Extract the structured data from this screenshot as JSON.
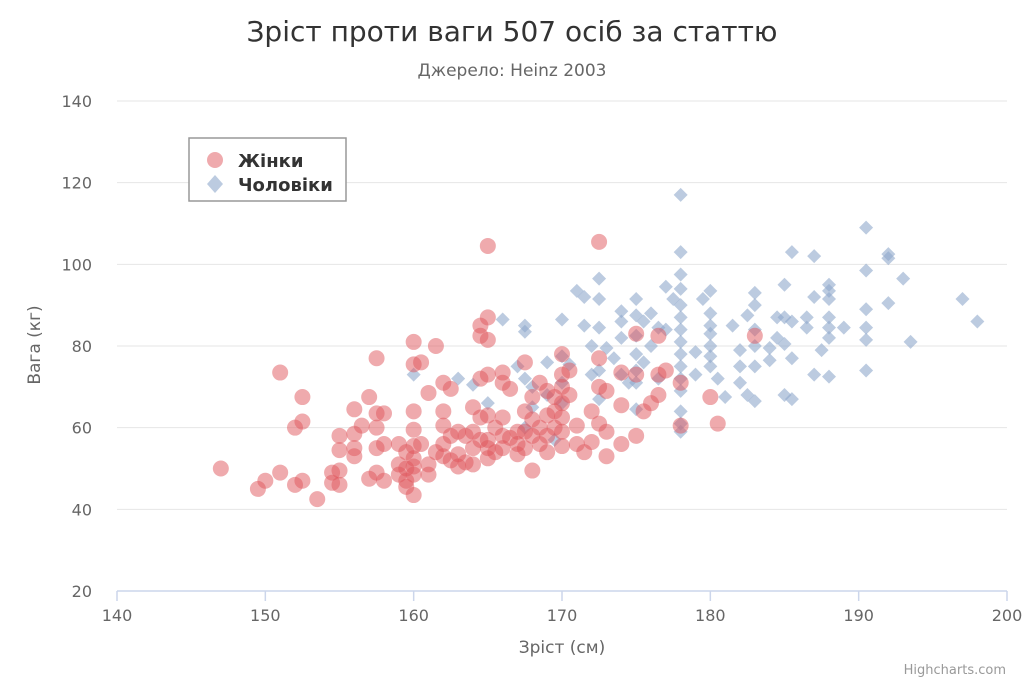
{
  "chart_data": {
    "type": "scatter",
    "title": "Зріст проти ваги 507 осіб за статтю",
    "subtitle": "Джерело: Heinz 2003",
    "xlabel": "Зріст (см)",
    "ylabel": "Вага (кг)",
    "xlim": [
      140,
      200
    ],
    "ylim": [
      20,
      140
    ],
    "xticks": [
      140,
      150,
      160,
      170,
      180,
      190,
      200
    ],
    "yticks": [
      20,
      40,
      60,
      80,
      100,
      120,
      140
    ],
    "grid": "horizontal",
    "legend_position": "top-left",
    "credits": "Highcharts.com",
    "series": [
      {
        "name": "Жінки",
        "marker": "circle",
        "color": "#e0565b",
        "points": [
          [
            147,
            50
          ],
          [
            149.5,
            45
          ],
          [
            150,
            47
          ],
          [
            151,
            49
          ],
          [
            151,
            73.5
          ],
          [
            152,
            46
          ],
          [
            152,
            60
          ],
          [
            152.5,
            47
          ],
          [
            152.5,
            61.5
          ],
          [
            152.5,
            67.5
          ],
          [
            153.5,
            42.5
          ],
          [
            154.5,
            49
          ],
          [
            154.5,
            46.5
          ],
          [
            155,
            58
          ],
          [
            155,
            54.5
          ],
          [
            155,
            49.5
          ],
          [
            155,
            46
          ],
          [
            156,
            64.5
          ],
          [
            156,
            55
          ],
          [
            156,
            53
          ],
          [
            156,
            58.5
          ],
          [
            156.5,
            60.5
          ],
          [
            157,
            67.5
          ],
          [
            157,
            47.5
          ],
          [
            157.5,
            77
          ],
          [
            157.5,
            63.5
          ],
          [
            157.5,
            60
          ],
          [
            157.5,
            55
          ],
          [
            157.5,
            49
          ],
          [
            158,
            56
          ],
          [
            158,
            63.5
          ],
          [
            158,
            47
          ],
          [
            159,
            56
          ],
          [
            159,
            51
          ],
          [
            159,
            48.5
          ],
          [
            159.5,
            54
          ],
          [
            159.5,
            50
          ],
          [
            159.5,
            47
          ],
          [
            159.5,
            45.5
          ],
          [
            160,
            59.5
          ],
          [
            160,
            64
          ],
          [
            160,
            81
          ],
          [
            160,
            75.5
          ],
          [
            160,
            55.5
          ],
          [
            160,
            52.5
          ],
          [
            160,
            50.5
          ],
          [
            160,
            48.5
          ],
          [
            160,
            43.5
          ],
          [
            160.5,
            76
          ],
          [
            160.5,
            56
          ],
          [
            161,
            68.5
          ],
          [
            161,
            51
          ],
          [
            161,
            48.5
          ],
          [
            161.5,
            80
          ],
          [
            161.5,
            54
          ],
          [
            162,
            71
          ],
          [
            162,
            64
          ],
          [
            162,
            60.5
          ],
          [
            162,
            56
          ],
          [
            162,
            53
          ],
          [
            162.5,
            69.5
          ],
          [
            162.5,
            58
          ],
          [
            162.5,
            52
          ],
          [
            163,
            59
          ],
          [
            163,
            53.5
          ],
          [
            163,
            50.5
          ],
          [
            163.5,
            51.5
          ],
          [
            163.5,
            58
          ],
          [
            164,
            55
          ],
          [
            164,
            59
          ],
          [
            164,
            51
          ],
          [
            164,
            65
          ],
          [
            164.5,
            85
          ],
          [
            164.5,
            82.5
          ],
          [
            164.5,
            72
          ],
          [
            164.5,
            62.5
          ],
          [
            164.5,
            57
          ],
          [
            165,
            104.5
          ],
          [
            165,
            63
          ],
          [
            165,
            57
          ],
          [
            165,
            55
          ],
          [
            165,
            52.5
          ],
          [
            165,
            87
          ],
          [
            165,
            81.5
          ],
          [
            165,
            73
          ],
          [
            165.5,
            60
          ],
          [
            165.5,
            54
          ],
          [
            166,
            73.5
          ],
          [
            166,
            71
          ],
          [
            166,
            62.5
          ],
          [
            166,
            58
          ],
          [
            166,
            55
          ],
          [
            166.5,
            69.5
          ],
          [
            166.5,
            57.5
          ],
          [
            167,
            59
          ],
          [
            167,
            56
          ],
          [
            167,
            53.5
          ],
          [
            167.5,
            76
          ],
          [
            167.5,
            64
          ],
          [
            167.5,
            59
          ],
          [
            167.5,
            55
          ],
          [
            168,
            67.5
          ],
          [
            168,
            62
          ],
          [
            168,
            58
          ],
          [
            168,
            49.5
          ],
          [
            168.5,
            71
          ],
          [
            168.5,
            60
          ],
          [
            168.5,
            56
          ],
          [
            169,
            69
          ],
          [
            169,
            63
          ],
          [
            169,
            58
          ],
          [
            169,
            54
          ],
          [
            169.5,
            67.5
          ],
          [
            169.5,
            64
          ],
          [
            169.5,
            60
          ],
          [
            170,
            78
          ],
          [
            170,
            73
          ],
          [
            170,
            70
          ],
          [
            170,
            66
          ],
          [
            170,
            62.5
          ],
          [
            170,
            59
          ],
          [
            170,
            55.5
          ],
          [
            170.5,
            74
          ],
          [
            170.5,
            68
          ],
          [
            171,
            60.5
          ],
          [
            171,
            56
          ],
          [
            171.5,
            54
          ],
          [
            172,
            56.5
          ],
          [
            172,
            64
          ],
          [
            172.5,
            105.5
          ],
          [
            172.5,
            77
          ],
          [
            172.5,
            70
          ],
          [
            172.5,
            61
          ],
          [
            173,
            69
          ],
          [
            173,
            59
          ],
          [
            173,
            53
          ],
          [
            174,
            65.5
          ],
          [
            174,
            56
          ],
          [
            174,
            73.5
          ],
          [
            175,
            83
          ],
          [
            175,
            73
          ],
          [
            175,
            58
          ],
          [
            175.5,
            64
          ],
          [
            176,
            66
          ],
          [
            176.5,
            82.5
          ],
          [
            176.5,
            68
          ],
          [
            176.5,
            73
          ],
          [
            177,
            74
          ],
          [
            178,
            60.5
          ],
          [
            178,
            71
          ],
          [
            180,
            67.5
          ],
          [
            180.5,
            61
          ],
          [
            183,
            82.5
          ]
        ]
      },
      {
        "name": "Чоловіки",
        "marker": "diamond",
        "color": "#8fa8cc",
        "points": [
          [
            160,
            73
          ],
          [
            163,
            72
          ],
          [
            164,
            70.5
          ],
          [
            165,
            66
          ],
          [
            166,
            86.5
          ],
          [
            167,
            75
          ],
          [
            167.5,
            85
          ],
          [
            167.5,
            83.5
          ],
          [
            167.5,
            72
          ],
          [
            167.5,
            60
          ],
          [
            168,
            65
          ],
          [
            168,
            70
          ],
          [
            169,
            76
          ],
          [
            169,
            68
          ],
          [
            169.5,
            57
          ],
          [
            170,
            86.5
          ],
          [
            170,
            77.5
          ],
          [
            170,
            71
          ],
          [
            170,
            66
          ],
          [
            170.5,
            75.5
          ],
          [
            171,
            93.5
          ],
          [
            171.5,
            92
          ],
          [
            171.5,
            85
          ],
          [
            172,
            80
          ],
          [
            172,
            73
          ],
          [
            172.5,
            96.5
          ],
          [
            172.5,
            91.5
          ],
          [
            172.5,
            84.5
          ],
          [
            172.5,
            74
          ],
          [
            172.5,
            67
          ],
          [
            173,
            79.5
          ],
          [
            173.5,
            77
          ],
          [
            174,
            88.5
          ],
          [
            174,
            86
          ],
          [
            174,
            82
          ],
          [
            174,
            73
          ],
          [
            174.5,
            71
          ],
          [
            175,
            91.5
          ],
          [
            175,
            87.5
          ],
          [
            175,
            82.5
          ],
          [
            175,
            78
          ],
          [
            175,
            74
          ],
          [
            175,
            71
          ],
          [
            175,
            64.5
          ],
          [
            175.5,
            86
          ],
          [
            175.5,
            76
          ],
          [
            176,
            88
          ],
          [
            176,
            80
          ],
          [
            176.5,
            84.5
          ],
          [
            176.5,
            72
          ],
          [
            177,
            94.5
          ],
          [
            177,
            84
          ],
          [
            177.5,
            91.5
          ],
          [
            178,
            117
          ],
          [
            178,
            103
          ],
          [
            178,
            97.5
          ],
          [
            178,
            94
          ],
          [
            178,
            90
          ],
          [
            178,
            87
          ],
          [
            178,
            84
          ],
          [
            178,
            81
          ],
          [
            178,
            78
          ],
          [
            178,
            75
          ],
          [
            178,
            72
          ],
          [
            178,
            69
          ],
          [
            178,
            64
          ],
          [
            178,
            61
          ],
          [
            178,
            59
          ],
          [
            179,
            78.5
          ],
          [
            179,
            73
          ],
          [
            179.5,
            91.5
          ],
          [
            180,
            93.5
          ],
          [
            180,
            88
          ],
          [
            180,
            85
          ],
          [
            180,
            83
          ],
          [
            180,
            80
          ],
          [
            180,
            77.5
          ],
          [
            180,
            75
          ],
          [
            180.5,
            72
          ],
          [
            181,
            67.5
          ],
          [
            181.5,
            85
          ],
          [
            182,
            79
          ],
          [
            182,
            75
          ],
          [
            182,
            71
          ],
          [
            182.5,
            87.5
          ],
          [
            182.5,
            68
          ],
          [
            183,
            93
          ],
          [
            183,
            90
          ],
          [
            183,
            84
          ],
          [
            183,
            80
          ],
          [
            183,
            75
          ],
          [
            183,
            66.5
          ],
          [
            184,
            79.5
          ],
          [
            184,
            76.5
          ],
          [
            184.5,
            87
          ],
          [
            184.5,
            82
          ],
          [
            185,
            95
          ],
          [
            185,
            87
          ],
          [
            185,
            80.5
          ],
          [
            185,
            68
          ],
          [
            185.5,
            103
          ],
          [
            185.5,
            86
          ],
          [
            185.5,
            77
          ],
          [
            185.5,
            67
          ],
          [
            186.5,
            87
          ],
          [
            186.5,
            84.5
          ],
          [
            187,
            102
          ],
          [
            187,
            92
          ],
          [
            187,
            73
          ],
          [
            187.5,
            79
          ],
          [
            188,
            95
          ],
          [
            188,
            93.5
          ],
          [
            188,
            91.5
          ],
          [
            188,
            87
          ],
          [
            188,
            84.5
          ],
          [
            188,
            82
          ],
          [
            188,
            72.5
          ],
          [
            189,
            84.5
          ],
          [
            190.5,
            109
          ],
          [
            190.5,
            98.5
          ],
          [
            190.5,
            89
          ],
          [
            190.5,
            84.5
          ],
          [
            190.5,
            81.5
          ],
          [
            190.5,
            74
          ],
          [
            192,
            102.5
          ],
          [
            192,
            101.5
          ],
          [
            192,
            90.5
          ],
          [
            193,
            96.5
          ],
          [
            193.5,
            81
          ],
          [
            197,
            91.5
          ],
          [
            198,
            86
          ]
        ]
      }
    ]
  }
}
